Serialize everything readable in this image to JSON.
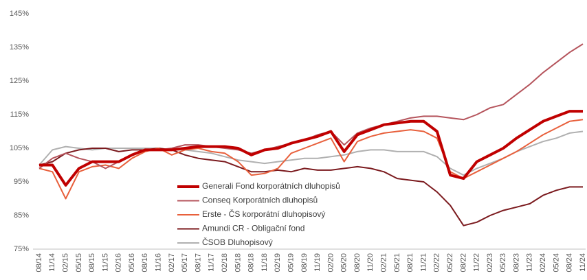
{
  "chart_data": {
    "type": "line",
    "categories": [
      "08/14",
      "11/14",
      "02/15",
      "05/15",
      "08/15",
      "11/15",
      "02/16",
      "05/16",
      "08/16",
      "11/16",
      "02/17",
      "05/17",
      "08/17",
      "11/17",
      "02/18",
      "05/18",
      "08/18",
      "11/18",
      "02/19",
      "05/19",
      "08/19",
      "11/19",
      "02/20",
      "05/20",
      "08/20",
      "11/20",
      "02/21",
      "05/21",
      "08/21",
      "11/21",
      "02/22",
      "05/22",
      "08/22",
      "11/22",
      "02/23",
      "05/23",
      "08/23",
      "11/23",
      "02/24",
      "05/24",
      "08/24",
      "11/24"
    ],
    "series": [
      {
        "name": "Generali Fond korporátních dluhopisů",
        "color": "#c00000",
        "line_width": 4,
        "values": [
          100,
          100,
          94,
          99,
          101,
          101,
          101,
          103,
          104.5,
          104.5,
          104.5,
          105,
          105.5,
          105.5,
          105.5,
          105,
          103,
          104.5,
          105,
          106.5,
          107.5,
          108.5,
          110,
          104,
          109,
          110.5,
          112,
          112.5,
          113,
          113,
          110,
          97,
          96,
          101,
          103,
          105,
          108,
          110.5,
          113,
          114.5,
          116,
          116
        ]
      },
      {
        "name": "Conseq Korporátních dluhopisů",
        "color": "#b5545c",
        "line_width": 2,
        "values": [
          99,
          102,
          103.5,
          102,
          101,
          99,
          101,
          103,
          104.5,
          104.5,
          105,
          106,
          106,
          105.5,
          105,
          104.5,
          103.5,
          104.5,
          105.5,
          106.5,
          107.5,
          109,
          110,
          106,
          109.5,
          111,
          112,
          113,
          114,
          114.5,
          114.5,
          114,
          113.5,
          115,
          117,
          118,
          121,
          124,
          127.5,
          130.5,
          133.5,
          136
        ]
      },
      {
        "name": "Erste - ČS korporátní dluhopisový",
        "color": "#e8603c",
        "line_width": 2,
        "values": [
          99,
          98,
          90,
          98,
          99.5,
          100,
          99,
          102,
          104,
          105,
          103,
          104.5,
          105,
          104,
          103.5,
          101,
          97,
          97.5,
          99,
          103.5,
          105,
          106.5,
          108,
          101,
          107,
          108.5,
          109.5,
          110,
          110.5,
          110,
          108,
          98,
          96,
          98,
          100,
          102,
          104,
          106.5,
          109,
          111,
          113,
          113.5
        ]
      },
      {
        "name": "Amundi CR - Obligační fond",
        "color": "#7b1a1e",
        "line_width": 2,
        "values": [
          100,
          101,
          103.5,
          104.5,
          105,
          105,
          104,
          104.5,
          104.5,
          105,
          104.5,
          103,
          102,
          101.5,
          101,
          99.5,
          98,
          98,
          98.5,
          98,
          99,
          98.5,
          98.5,
          99,
          99.5,
          99,
          98,
          96,
          95.5,
          95,
          92,
          88,
          82,
          83,
          85,
          86.5,
          87.5,
          88.5,
          91,
          92.5,
          93.5,
          93.5
        ]
      },
      {
        "name": "ČSOB Dluhopisový",
        "color": "#b0b0b0",
        "line_width": 2,
        "values": [
          100,
          104.5,
          105.5,
          105,
          104.5,
          105,
          105,
          105,
          105,
          105,
          104.5,
          104.5,
          104,
          103.5,
          102.5,
          101.5,
          101,
          100.5,
          101,
          101.5,
          102,
          102,
          102.5,
          103,
          104,
          104.5,
          104.5,
          104,
          104,
          104,
          102.5,
          99,
          97,
          99,
          100.5,
          102,
          104,
          105.5,
          107,
          108,
          109.5,
          110
        ]
      }
    ],
    "ylim": [
      75,
      145
    ],
    "yticks": [
      {
        "value": 75,
        "label": "75%"
      },
      {
        "value": 85,
        "label": "85%"
      },
      {
        "value": 95,
        "label": "95%"
      },
      {
        "value": 105,
        "label": "105%"
      },
      {
        "value": 115,
        "label": "115%"
      },
      {
        "value": 125,
        "label": "125%"
      },
      {
        "value": 135,
        "label": "135%"
      },
      {
        "value": 145,
        "label": "145%"
      }
    ]
  }
}
